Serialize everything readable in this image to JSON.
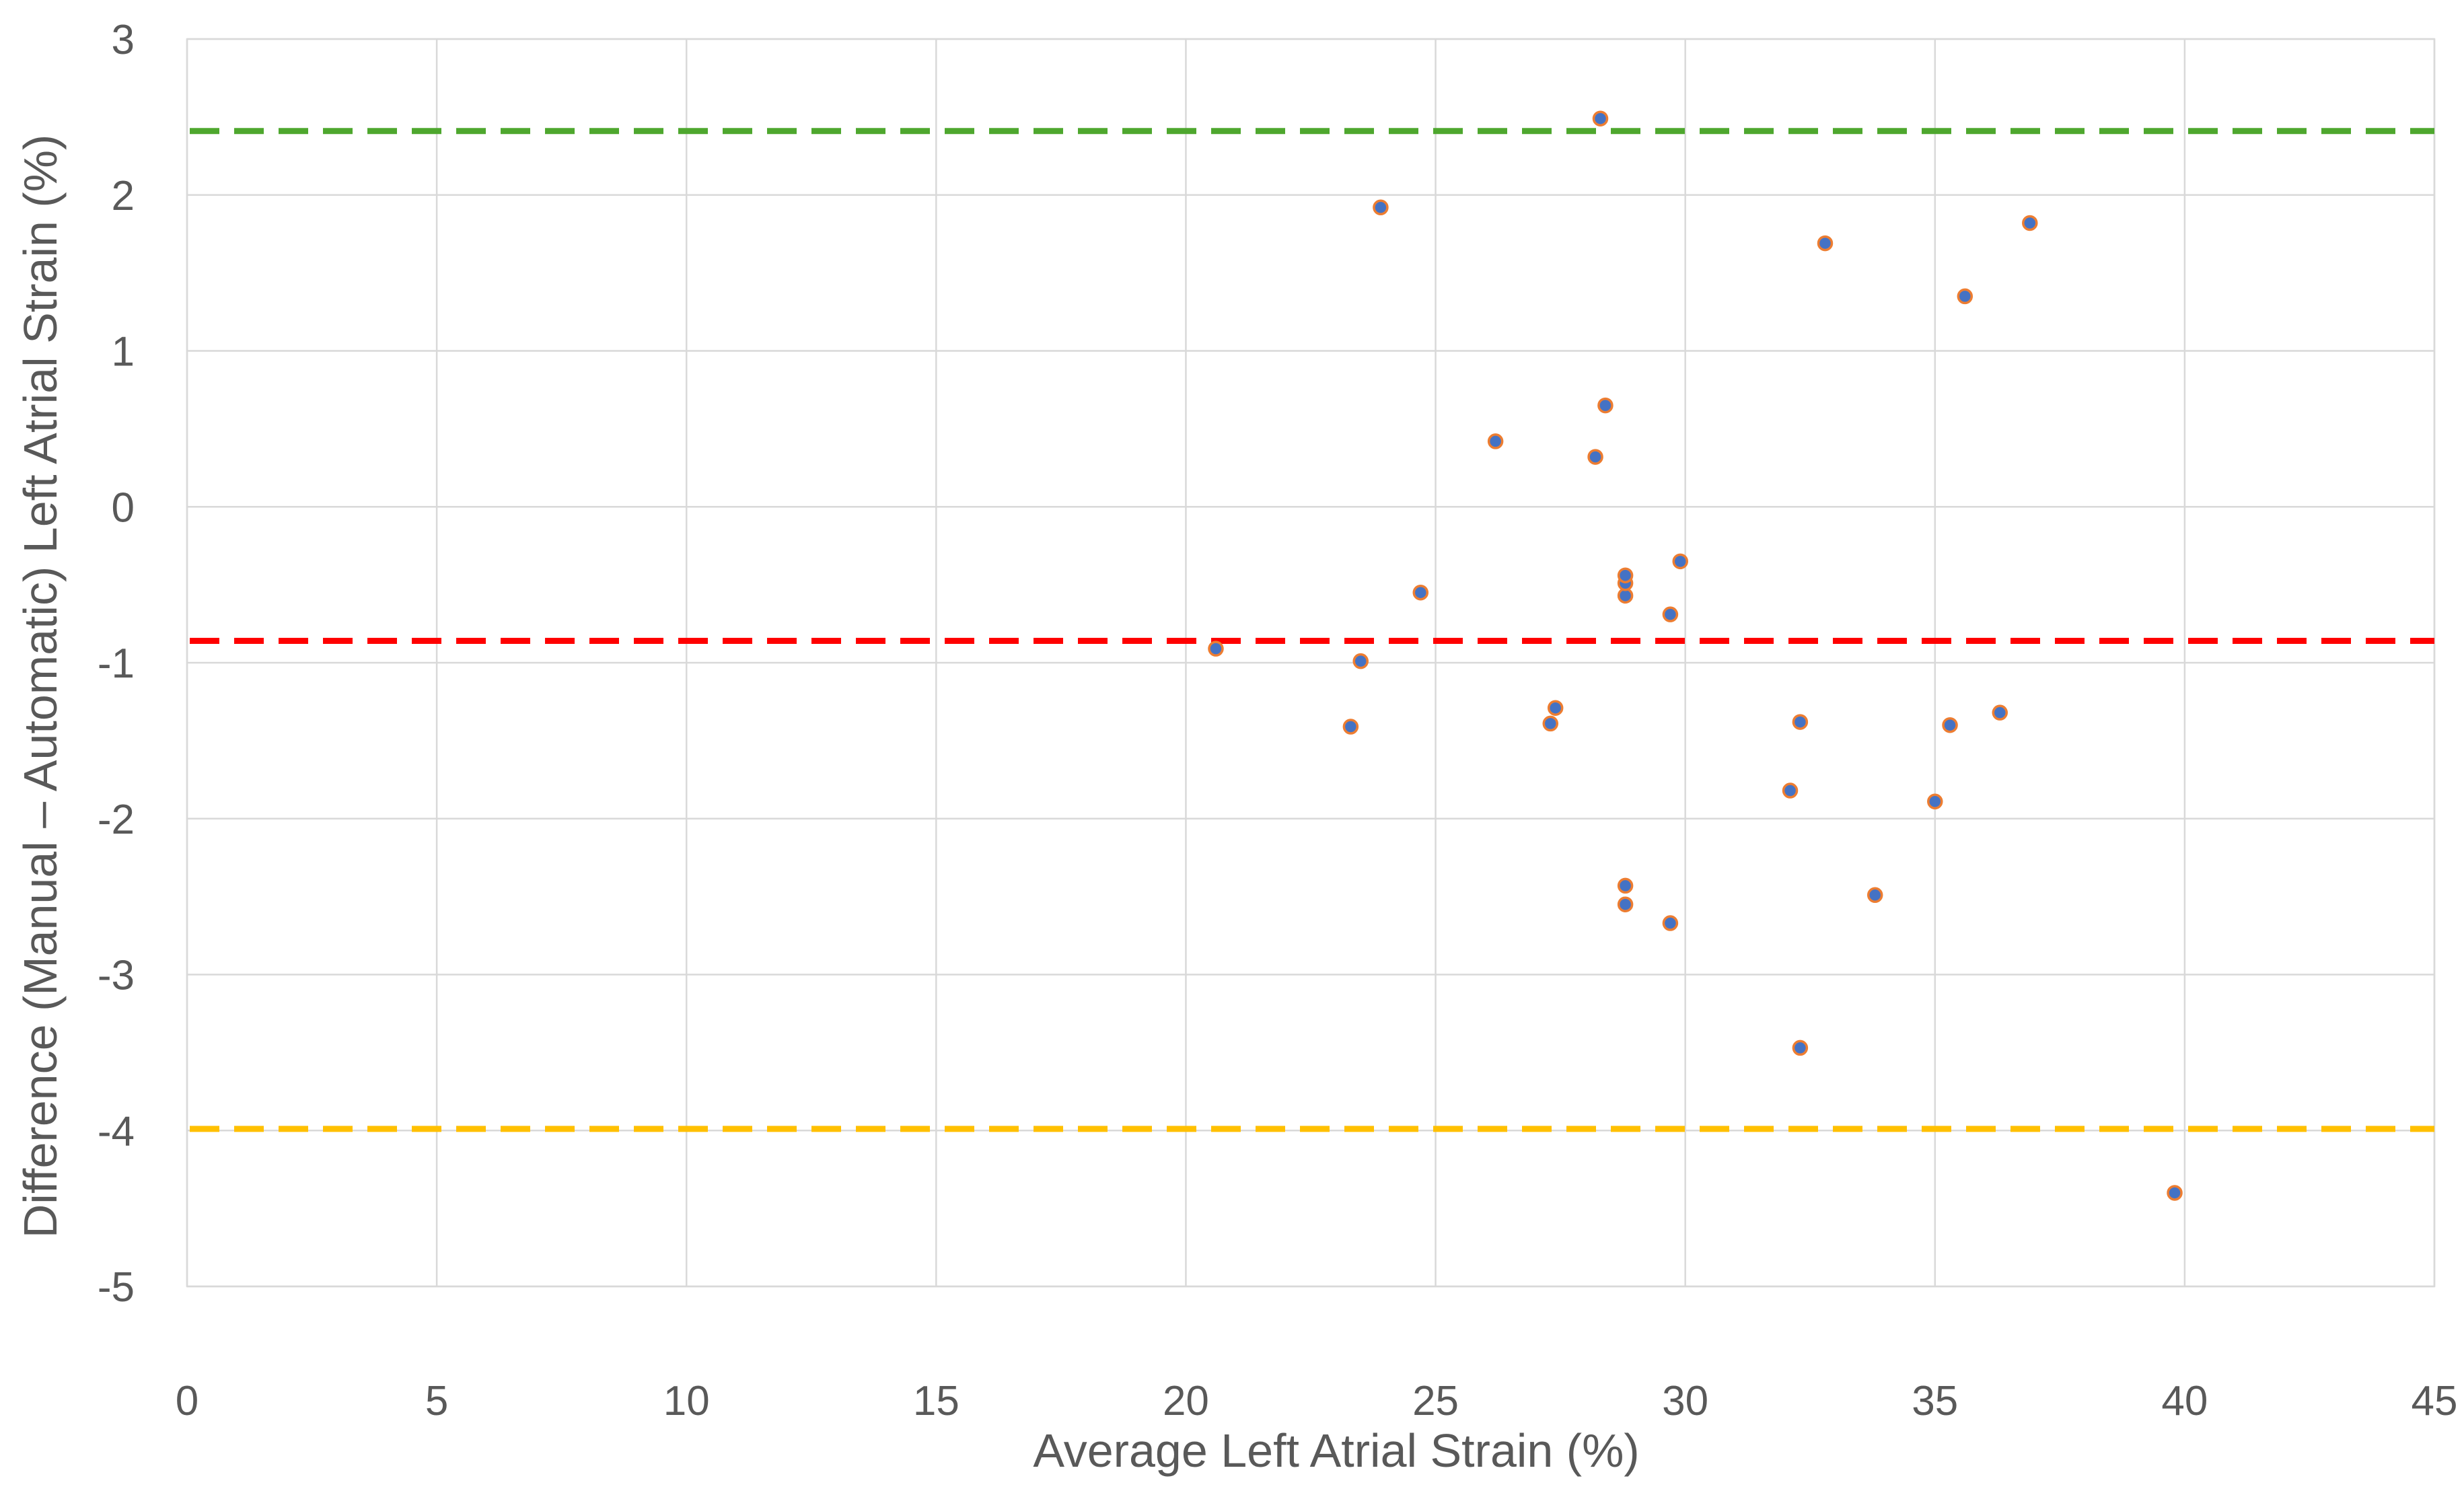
{
  "chart_data": {
    "type": "scatter",
    "title": "",
    "xlabel": "Average Left Atrial Strain (%)",
    "ylabel": "Difference (Manual – Automatic) Left Atrial Strain (%)",
    "xlim": [
      0,
      45
    ],
    "ylim": [
      -5,
      3
    ],
    "x_ticks": [
      "0",
      "5",
      "10",
      "15",
      "20",
      "25",
      "30",
      "35",
      "40",
      "45"
    ],
    "y_ticks": [
      "3",
      "2",
      "1",
      "0",
      "-1",
      "-2",
      "-3",
      "-4",
      "-5"
    ],
    "grid": true,
    "legend": "none",
    "marker_color": "#4472c4",
    "marker_edge_color": "#ed7d31",
    "points": [
      {
        "x": 20.6,
        "y": -0.91
      },
      {
        "x": 23.3,
        "y": -1.41
      },
      {
        "x": 23.5,
        "y": -0.99
      },
      {
        "x": 23.9,
        "y": 1.92
      },
      {
        "x": 24.7,
        "y": -0.55
      },
      {
        "x": 26.2,
        "y": 0.42
      },
      {
        "x": 27.3,
        "y": -1.39
      },
      {
        "x": 27.4,
        "y": -1.29
      },
      {
        "x": 28.2,
        "y": 0.32
      },
      {
        "x": 28.3,
        "y": 2.49
      },
      {
        "x": 28.4,
        "y": 0.65
      },
      {
        "x": 28.8,
        "y": -0.57
      },
      {
        "x": 28.8,
        "y": -0.49
      },
      {
        "x": 28.8,
        "y": -0.44
      },
      {
        "x": 28.8,
        "y": -2.55
      },
      {
        "x": 28.8,
        "y": -2.43
      },
      {
        "x": 29.7,
        "y": -0.69
      },
      {
        "x": 29.7,
        "y": -2.67
      },
      {
        "x": 29.9,
        "y": -0.35
      },
      {
        "x": 32.1,
        "y": -1.82
      },
      {
        "x": 32.3,
        "y": -1.38
      },
      {
        "x": 32.3,
        "y": -3.47
      },
      {
        "x": 32.8,
        "y": 1.69
      },
      {
        "x": 33.8,
        "y": -2.49
      },
      {
        "x": 35.0,
        "y": -1.89
      },
      {
        "x": 35.3,
        "y": -1.4
      },
      {
        "x": 35.6,
        "y": 1.35
      },
      {
        "x": 36.3,
        "y": -1.32
      },
      {
        "x": 36.9,
        "y": 1.82
      },
      {
        "x": 39.8,
        "y": -4.4
      }
    ],
    "reference_lines": [
      {
        "y": 2.41,
        "color": "#4ea72e",
        "style": "dashed"
      },
      {
        "y": -0.86,
        "color": "#ff0000",
        "style": "dashed"
      },
      {
        "y": -3.99,
        "color": "#ffc000",
        "style": "dashed"
      }
    ]
  }
}
